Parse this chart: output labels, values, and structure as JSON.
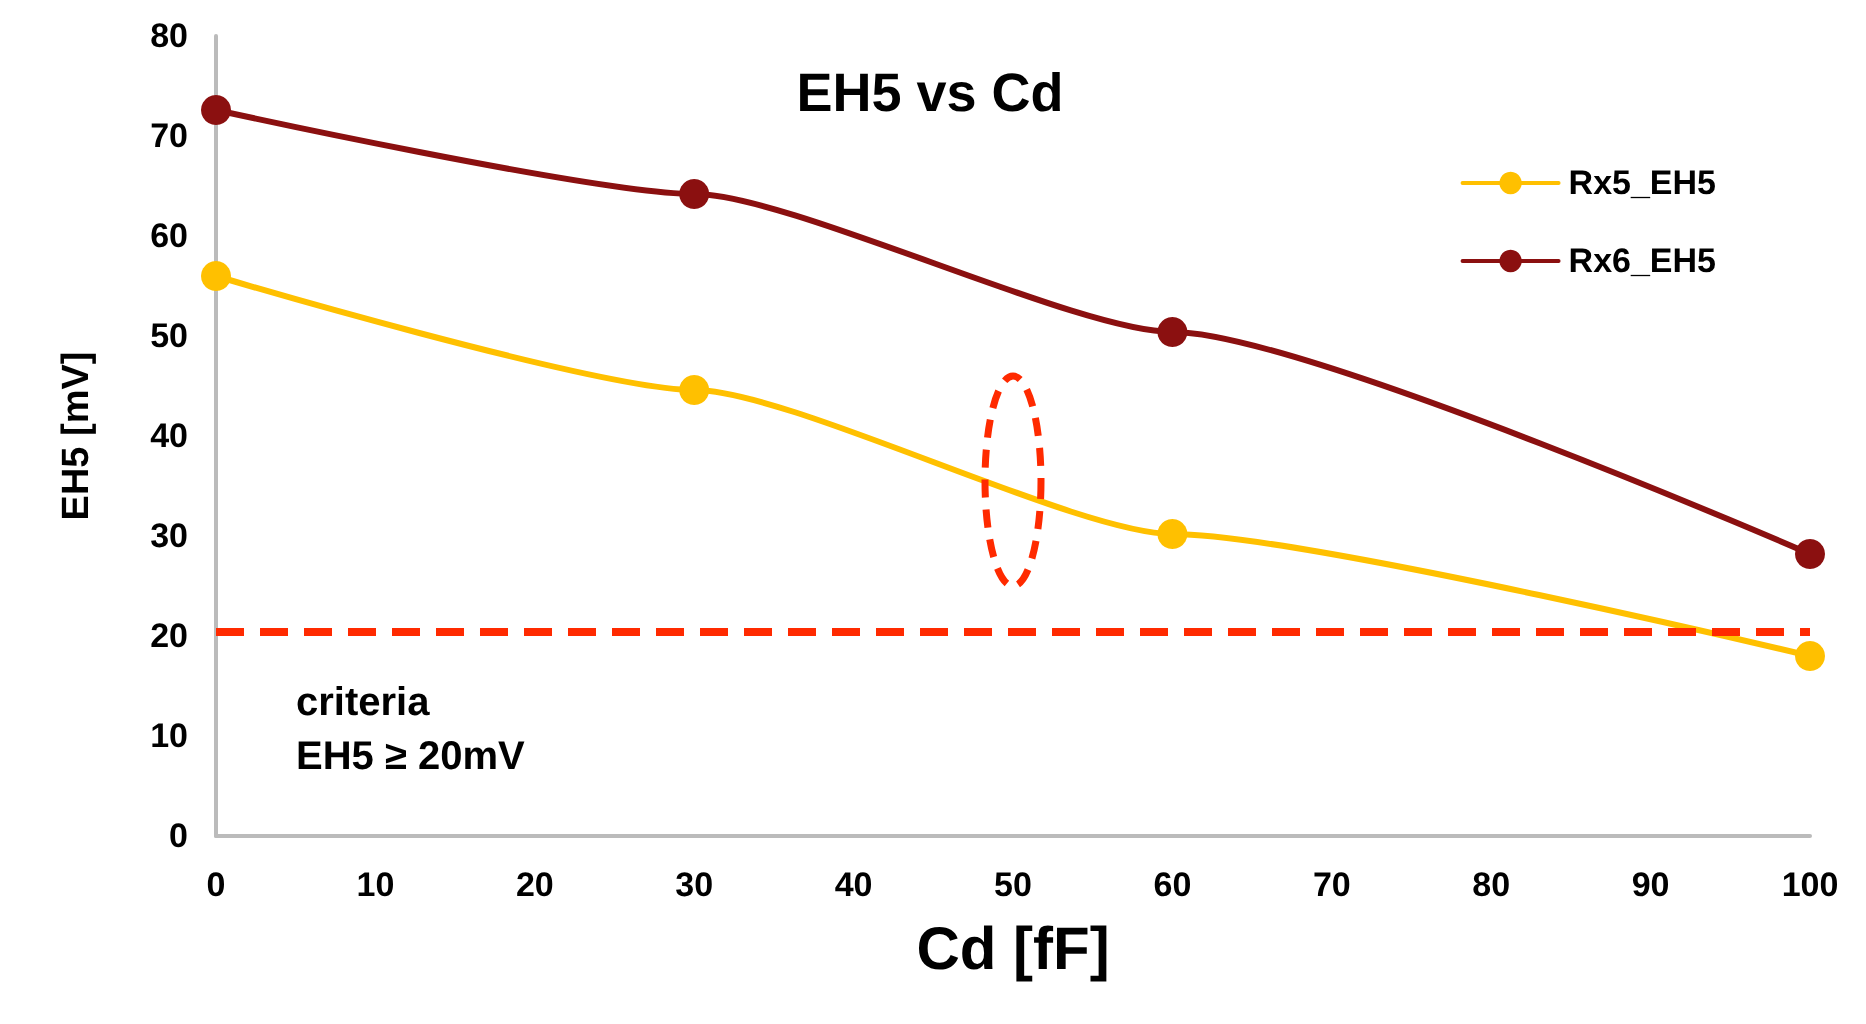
{
  "chart_data": {
    "type": "line",
    "title": "EH5 vs Cd",
    "xlabel": "Cd [fF]",
    "ylabel": "EH5 [mV]",
    "x": [
      0,
      30,
      60,
      100
    ],
    "series": [
      {
        "name": "Rx5_EH5",
        "color": "#ffc000",
        "values": [
          56,
          44.6,
          30.2,
          18
        ]
      },
      {
        "name": "Rx6_EH5",
        "color": "#8b1010",
        "values": [
          72.6,
          64.2,
          50.4,
          28.2
        ]
      }
    ],
    "xlim": [
      0,
      100
    ],
    "xticks": [
      0,
      10,
      20,
      30,
      40,
      50,
      60,
      70,
      80,
      90,
      100
    ],
    "ylim": [
      0,
      80
    ],
    "yticks": [
      0,
      10,
      20,
      30,
      40,
      50,
      60,
      70,
      80
    ],
    "ref_lines": [
      {
        "axis": "y",
        "value": 20.4,
        "color": "#ff2a00",
        "line_style": "dashed"
      }
    ],
    "annotations": [
      "criteria\nEH5 ≥ 20mV"
    ],
    "grid": false,
    "legend": "top right",
    "marker": "circle",
    "line_style": "solid"
  }
}
